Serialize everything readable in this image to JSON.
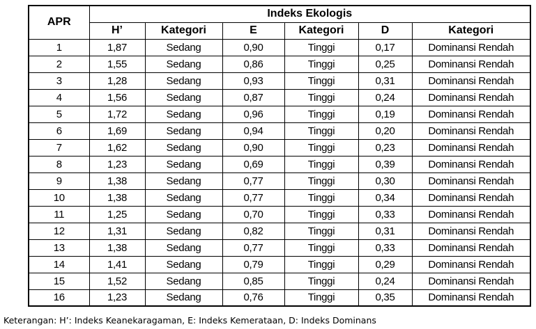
{
  "chart_data": {
    "type": "table",
    "title": "Indeks Ekologis",
    "corner_header": "APR",
    "sub_headers": [
      "H’",
      "Kategori",
      "E",
      "Kategori",
      "D",
      "Kategori"
    ],
    "columns": [
      "APR",
      "H’",
      "Kategori",
      "E",
      "Kategori",
      "D",
      "Kategori"
    ],
    "rows": [
      [
        "1",
        "1,87",
        "Sedang",
        "0,90",
        "Tinggi",
        "0,17",
        "Dominansi Rendah"
      ],
      [
        "2",
        "1,55",
        "Sedang",
        "0,86",
        "Tinggi",
        "0,25",
        "Dominansi Rendah"
      ],
      [
        "3",
        "1,28",
        "Sedang",
        "0,93",
        "Tinggi",
        "0,31",
        "Dominansi Rendah"
      ],
      [
        "4",
        "1,56",
        "Sedang",
        "0,87",
        "Tinggi",
        "0,24",
        "Dominansi Rendah"
      ],
      [
        "5",
        "1,72",
        "Sedang",
        "0,96",
        "Tinggi",
        "0,19",
        "Dominansi Rendah"
      ],
      [
        "6",
        "1,69",
        "Sedang",
        "0,94",
        "Tinggi",
        "0,20",
        "Dominansi Rendah"
      ],
      [
        "7",
        "1,62",
        "Sedang",
        "0,90",
        "Tinggi",
        "0,23",
        "Dominansi Rendah"
      ],
      [
        "8",
        "1,23",
        "Sedang",
        "0,69",
        "Tinggi",
        "0,39",
        "Dominansi Rendah"
      ],
      [
        "9",
        "1,38",
        "Sedang",
        "0,77",
        "Tinggi",
        "0,30",
        "Dominansi Rendah"
      ],
      [
        "10",
        "1,38",
        "Sedang",
        "0,77",
        "Tinggi",
        "0,34",
        "Dominansi Rendah"
      ],
      [
        "11",
        "1,25",
        "Sedang",
        "0,70",
        "Tinggi",
        "0,33",
        "Dominansi Rendah"
      ],
      [
        "12",
        "1,31",
        "Sedang",
        "0,82",
        "Tinggi",
        "0,31",
        "Dominansi Rendah"
      ],
      [
        "13",
        "1,38",
        "Sedang",
        "0,77",
        "Tinggi",
        "0,33",
        "Dominansi Rendah"
      ],
      [
        "14",
        "1,41",
        "Sedang",
        "0,79",
        "Tinggi",
        "0,29",
        "Dominansi Rendah"
      ],
      [
        "15",
        "1,52",
        "Sedang",
        "0,85",
        "Tinggi",
        "0,24",
        "Dominansi Rendah"
      ],
      [
        "16",
        "1,23",
        "Sedang",
        "0,76",
        "Tinggi",
        "0,35",
        "Dominansi Rendah"
      ]
    ],
    "note": "Keterangan: H’: Indeks Keanekaragaman, E: Indeks Kemerataan, D: Indeks Dominans",
    "colors": {
      "text": "#000000",
      "border": "#000000",
      "background": "#ffffff"
    }
  }
}
